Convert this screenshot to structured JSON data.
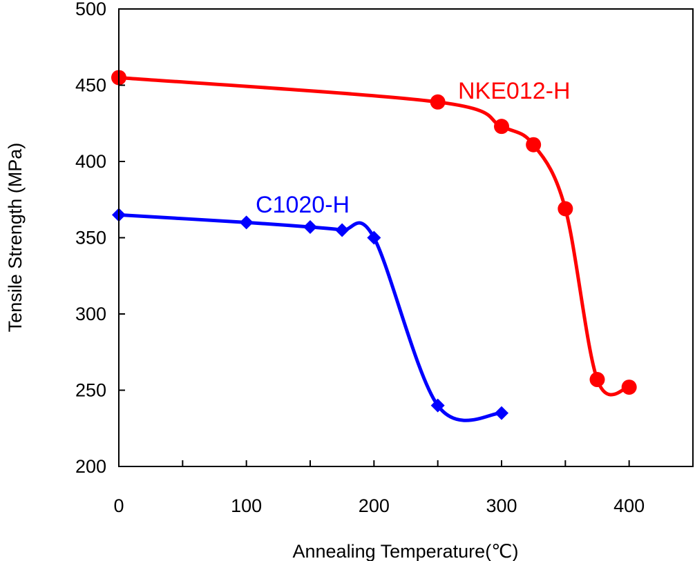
{
  "chart_data": {
    "type": "line",
    "xlabel": "Annealing Temperature(℃)",
    "ylabel": "Tensile Strength (MPa)",
    "xlim": [
      0,
      450
    ],
    "ylim": [
      200,
      500
    ],
    "xticks": [
      0,
      100,
      200,
      300,
      400
    ],
    "xtick_labels": [
      "0",
      "100",
      "200",
      "300",
      "400"
    ],
    "x_minor_ticks": [
      50,
      150,
      250,
      350,
      450
    ],
    "yticks": [
      200,
      250,
      300,
      350,
      400,
      450,
      500
    ],
    "ytick_labels": [
      "200",
      "250",
      "300",
      "350",
      "400",
      "450",
      "500"
    ],
    "grid": false,
    "legend": "none (series labeled inline)",
    "series": [
      {
        "name": "NKE012-H",
        "color": "#ff0000",
        "marker": "circle",
        "x": [
          0,
          250,
          300,
          325,
          350,
          375,
          400
        ],
        "values": [
          455,
          439,
          423,
          411,
          369,
          257,
          252
        ]
      },
      {
        "name": "C1020-H",
        "color": "#0000ff",
        "marker": "diamond",
        "x": [
          0,
          100,
          150,
          175,
          200,
          250,
          300
        ],
        "values": [
          365,
          360,
          357,
          355,
          350,
          240,
          235
        ]
      }
    ]
  }
}
